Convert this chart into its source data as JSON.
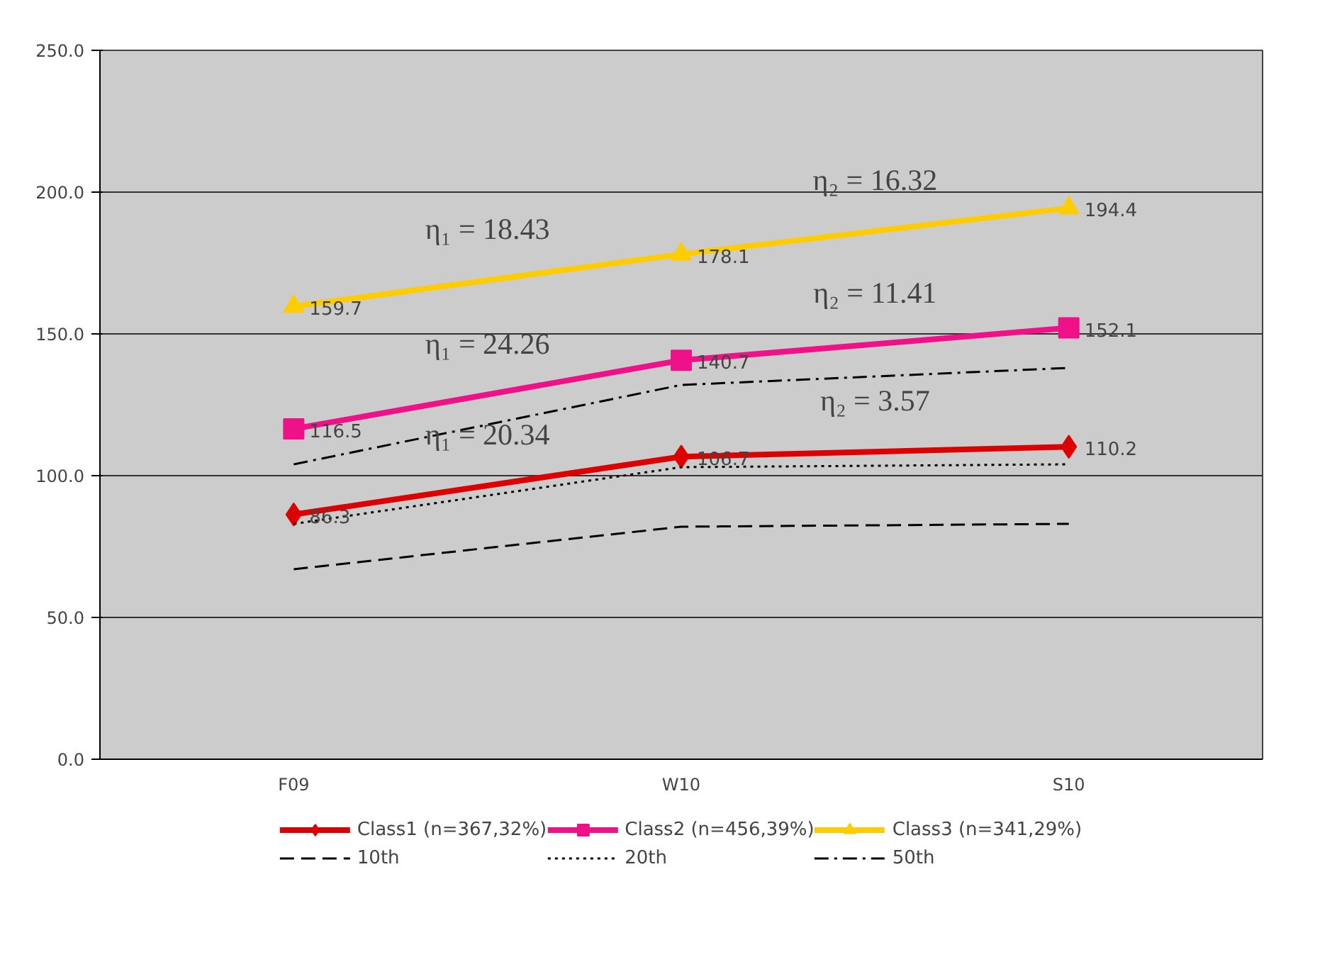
{
  "chart_data": {
    "type": "line",
    "categories": [
      "F09",
      "W10",
      "S10"
    ],
    "series": [
      {
        "name": "Class1 (n=367,32%)",
        "color": "#dd0000",
        "values": [
          86.3,
          106.7,
          110.2
        ],
        "marker": "diamond",
        "data_labels": true
      },
      {
        "name": "Class2 (n=456,39%)",
        "color": "#ee1188",
        "values": [
          116.5,
          140.7,
          152.1
        ],
        "marker": "square",
        "data_labels": true
      },
      {
        "name": "Class3 (n=341,29%)",
        "color": "#ffcc00",
        "values": [
          159.7,
          178.1,
          194.4
        ],
        "marker": "triangle",
        "data_labels": true
      },
      {
        "name": "10th",
        "color": "#000000",
        "values": [
          67,
          82,
          83
        ],
        "marker": "none",
        "line_style": "dashed"
      },
      {
        "name": "20th",
        "color": "#000000",
        "values": [
          83,
          103,
          104
        ],
        "marker": "none",
        "line_style": "dotted"
      },
      {
        "name": "50th",
        "color": "#000000",
        "values": [
          104,
          132,
          138
        ],
        "marker": "none",
        "line_style": "dashdot"
      }
    ],
    "ylim": [
      0,
      250
    ],
    "yticks": [
      {
        "value": 0,
        "label": "0.0"
      },
      {
        "value": 50,
        "label": "50.0"
      },
      {
        "value": 100,
        "label": "100.0"
      },
      {
        "value": 150,
        "label": "150.0"
      },
      {
        "value": 200,
        "label": "200.0"
      },
      {
        "value": 250,
        "label": "250.0"
      }
    ],
    "grid": "y",
    "legend": "bottom",
    "annotations": [
      "η₁ = 20.34",
      "η₂ = 3.57",
      "η₁ = 24.26",
      "η₂ = 11.41",
      "η₁ = 18.43",
      "η₂ = 16.32"
    ]
  }
}
